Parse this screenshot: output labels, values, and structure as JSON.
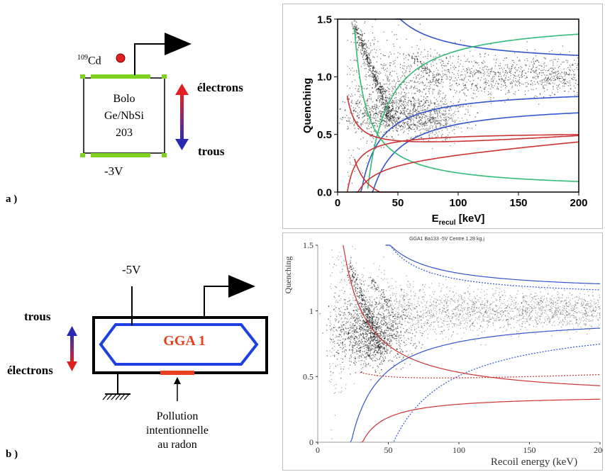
{
  "figure_a": {
    "label": "a )",
    "source": "109Cd",
    "source_mass": "109",
    "source_symbol": "Cd",
    "detector_lines": [
      "Bolo",
      "Ge/NbSi",
      "203"
    ],
    "voltage": "-3V",
    "arrow_top": "électrons",
    "arrow_bottom": "trous"
  },
  "figure_b": {
    "label": "b )",
    "voltage": "-5V",
    "detector": "GGA 1",
    "arrow_top": "trous",
    "arrow_bottom": "électrons",
    "pollution_lines": [
      "Pollution",
      "intentionnelle",
      "au radon"
    ]
  },
  "colors": {
    "electrode": "#7ed321",
    "source_dot": "#e02020",
    "band_blue": "#3355cc",
    "band_red": "#cc3333",
    "band_green": "#33bb77",
    "ggalabel": "#e8401c",
    "ggablue": "#1f3fe0"
  },
  "chart_data": [
    {
      "type": "scatter",
      "title": "",
      "xlabel_main": "E",
      "xlabel_sub": "recul",
      "xlabel_unit": " [keV]",
      "ylabel": "Quenching",
      "xlim": [
        0,
        200
      ],
      "ylim": [
        0,
        1.5
      ],
      "x_ticks": [
        "0",
        "50",
        "100",
        "150",
        "200"
      ],
      "y_ticks": [
        "0.0",
        "0.5",
        "1.0",
        "1.5"
      ],
      "grid": false
    },
    {
      "type": "scatter",
      "title": "GGA1 Ba133 -5V Centre 1.28 kg.j",
      "xlabel": "Recoil energy (keV)",
      "ylabel": "Quenching",
      "xlim": [
        0,
        200
      ],
      "ylim": [
        0,
        1.5
      ],
      "x_ticks": [
        "0",
        "50",
        "100",
        "150",
        "200"
      ],
      "y_ticks": [
        "0",
        "0.5",
        "1",
        "1.5"
      ],
      "grid": false
    }
  ]
}
